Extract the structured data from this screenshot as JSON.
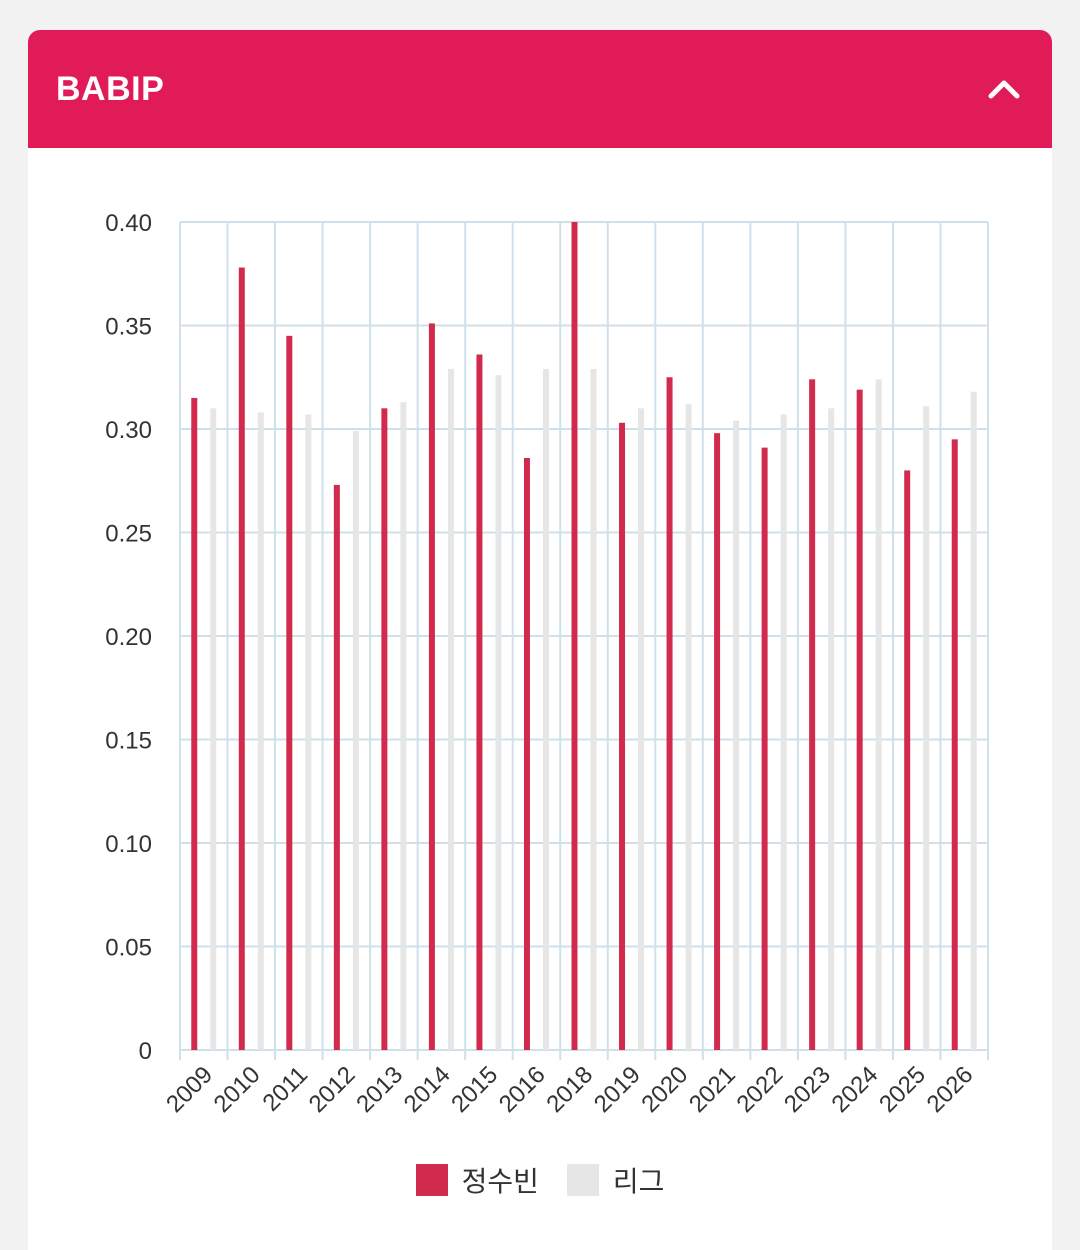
{
  "card": {
    "title": "BABIP",
    "collapse_icon": "chevron-up-icon"
  },
  "colors": {
    "header": "#e11b58",
    "player": "#d22a4c",
    "league": "#e6e6e6",
    "grid": "#cfe0ea"
  },
  "chart_data": {
    "type": "bar",
    "categories": [
      "2009",
      "2010",
      "2011",
      "2012",
      "2013",
      "2014",
      "2015",
      "2016",
      "2018",
      "2019",
      "2020",
      "2021",
      "2022",
      "2023",
      "2024",
      "2025",
      "2026"
    ],
    "series": [
      {
        "name": "정수빈",
        "values": [
          0.315,
          0.378,
          0.345,
          0.273,
          0.31,
          0.351,
          0.336,
          0.286,
          0.4,
          0.303,
          0.325,
          0.298,
          0.291,
          0.324,
          0.319,
          0.28,
          0.295
        ]
      },
      {
        "name": "리그",
        "values": [
          0.31,
          0.308,
          0.307,
          0.299,
          0.313,
          0.329,
          0.326,
          0.329,
          0.329,
          0.31,
          0.312,
          0.304,
          0.307,
          0.31,
          0.324,
          0.311,
          0.318
        ]
      }
    ],
    "yticks": [
      "0",
      "0.05",
      "0.10",
      "0.15",
      "0.20",
      "0.25",
      "0.30",
      "0.35",
      "0.40"
    ],
    "ylim": [
      0,
      0.4
    ],
    "grid": true,
    "legend_position": "bottom"
  },
  "legend": {
    "player_label": "정수빈",
    "league_label": "리그"
  }
}
